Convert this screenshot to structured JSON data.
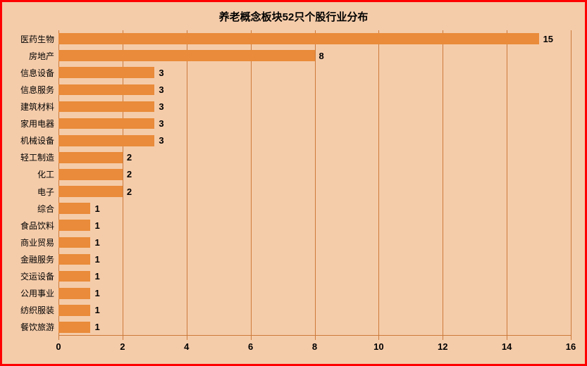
{
  "chart": {
    "type": "bar-horizontal",
    "title": "养老概念板块52只个股行业分布",
    "title_fontsize": 15,
    "title_color": "#000000",
    "background_color": "#f5ccaa",
    "border_color": "#ff0000",
    "border_width": 3,
    "bar_color": "#e98b3a",
    "grid_color": "#cc7a3a",
    "axis_text_color": "#000000",
    "label_fontsize": 12,
    "value_fontsize": 13,
    "tick_fontsize": 13,
    "xlim": [
      0,
      16
    ],
    "xtick_step": 2,
    "xticks": [
      0,
      2,
      4,
      6,
      8,
      10,
      12,
      14,
      16
    ],
    "bar_fill_ratio": 0.65,
    "categories": [
      "医药生物",
      "房地产",
      "信息设备",
      "信息服务",
      "建筑材料",
      "家用电器",
      "机械设备",
      "轻工制造",
      "化工",
      "电子",
      "综合",
      "食品饮料",
      "商业贸易",
      "金融服务",
      "交运设备",
      "公用事业",
      "纺织服装",
      "餐饮旅游"
    ],
    "values": [
      15,
      8,
      3,
      3,
      3,
      3,
      3,
      2,
      2,
      2,
      1,
      1,
      1,
      1,
      1,
      1,
      1,
      1
    ]
  }
}
